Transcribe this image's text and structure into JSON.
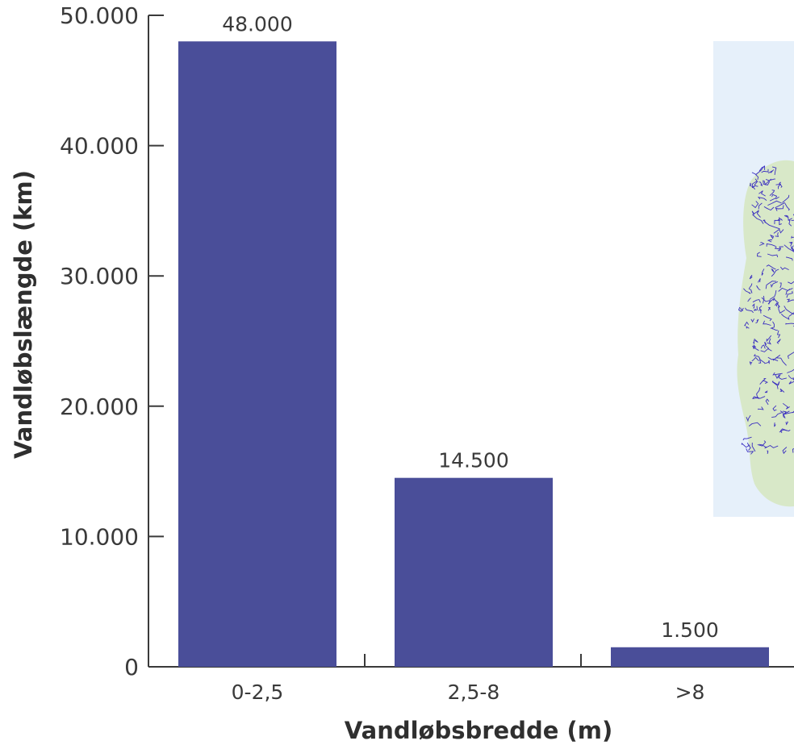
{
  "chart_data": {
    "type": "bar",
    "categories": [
      "0-2,5",
      "2,5-8",
      ">8"
    ],
    "values": [
      48000,
      14500,
      1500
    ],
    "value_labels": [
      "48.000",
      "14.500",
      "1.500"
    ],
    "xlabel": "Vandløbsbredde (m)",
    "ylabel": "Vandløbslængde (km)",
    "ylim": [
      0,
      50000
    ],
    "yticks": [
      0,
      10000,
      20000,
      30000,
      40000,
      50000
    ],
    "ytick_labels": [
      "0",
      "10.000",
      "20.000",
      "30.000",
      "40.000",
      "50.000"
    ],
    "grid": false,
    "legend": "none",
    "bar_color": "#4a4e99",
    "axis_color": "#3a3a3a",
    "inset": {
      "description": "map",
      "background": "#e6f0fa",
      "land_color": "#d8e8c8",
      "river_color": "#3a2fc0"
    }
  }
}
